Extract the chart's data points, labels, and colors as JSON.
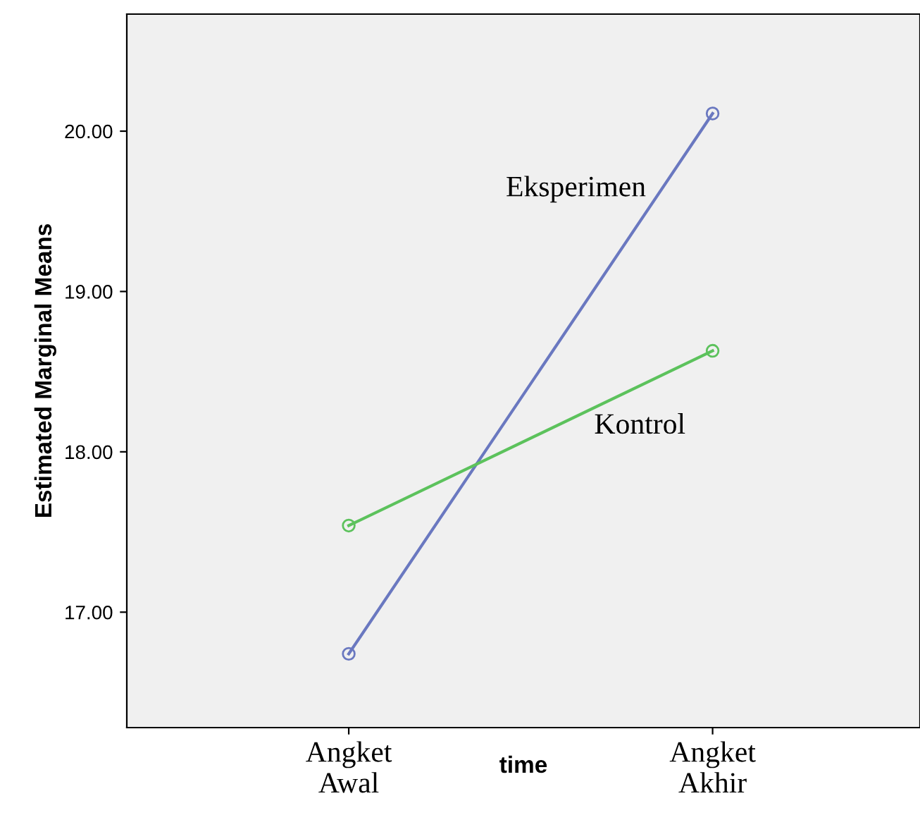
{
  "chart_data": {
    "type": "line",
    "xlabel": "time",
    "ylabel": "Estimated Marginal Means",
    "categories": [
      "Angket\nAwal",
      "Angket\nAkhir"
    ],
    "series": [
      {
        "name": "Eksperimen",
        "color": "#6a78c0",
        "values": [
          16.74,
          20.11
        ]
      },
      {
        "name": "Kontrol",
        "color": "#5cc25c",
        "values": [
          17.54,
          18.63
        ]
      }
    ],
    "ylim": [
      16.28,
      20.73
    ],
    "yticks": [
      {
        "value": 17,
        "label": "17.00"
      },
      {
        "value": 18,
        "label": "18.00"
      },
      {
        "value": 19,
        "label": "19.00"
      },
      {
        "value": 20,
        "label": "20.00"
      }
    ],
    "marker": "circle",
    "line_style": "solid",
    "grid": false,
    "legend": false
  }
}
